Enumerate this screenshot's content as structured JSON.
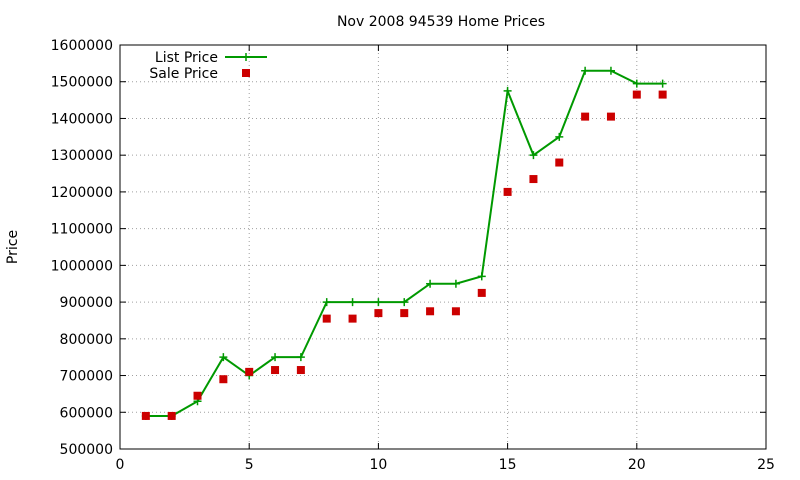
{
  "chart_data": {
    "type": "line",
    "title": "Nov 2008 94539 Home Prices",
    "xlabel": "",
    "ylabel": "Price",
    "xlim": [
      0,
      25
    ],
    "ylim": [
      500000,
      1600000
    ],
    "x_ticks": [
      "0",
      "5",
      "10",
      "15",
      "20",
      "25"
    ],
    "y_ticks": [
      "500000",
      "600000",
      "700000",
      "800000",
      "900000",
      "1000000",
      "1100000",
      "1200000",
      "1300000",
      "1400000",
      "1500000",
      "1600000"
    ],
    "grid": true,
    "legend_position": "top-left",
    "series": [
      {
        "name": "List Price",
        "style": "lines+crosses",
        "color": "#009900",
        "x": [
          1,
          2,
          3,
          4,
          5,
          6,
          7,
          8,
          9,
          10,
          11,
          12,
          13,
          14,
          15,
          16,
          17,
          18,
          19,
          20,
          21
        ],
        "y": [
          590000,
          590000,
          630000,
          750000,
          700000,
          750000,
          750000,
          900000,
          900000,
          900000,
          900000,
          950000,
          950000,
          970000,
          1475000,
          1300000,
          1350000,
          1530000,
          1530000,
          1495000,
          1495000
        ]
      },
      {
        "name": "Sale Price",
        "style": "squares",
        "color": "#cc0000",
        "x": [
          1,
          2,
          3,
          4,
          5,
          6,
          7,
          8,
          9,
          10,
          11,
          12,
          13,
          14,
          15,
          16,
          17,
          18,
          19,
          20,
          21
        ],
        "y": [
          590000,
          590000,
          645000,
          690000,
          710000,
          715000,
          715000,
          855000,
          855000,
          870000,
          870000,
          875000,
          875000,
          925000,
          1200000,
          1235000,
          1280000,
          1405000,
          1405000,
          1465000,
          1465000
        ]
      }
    ]
  }
}
